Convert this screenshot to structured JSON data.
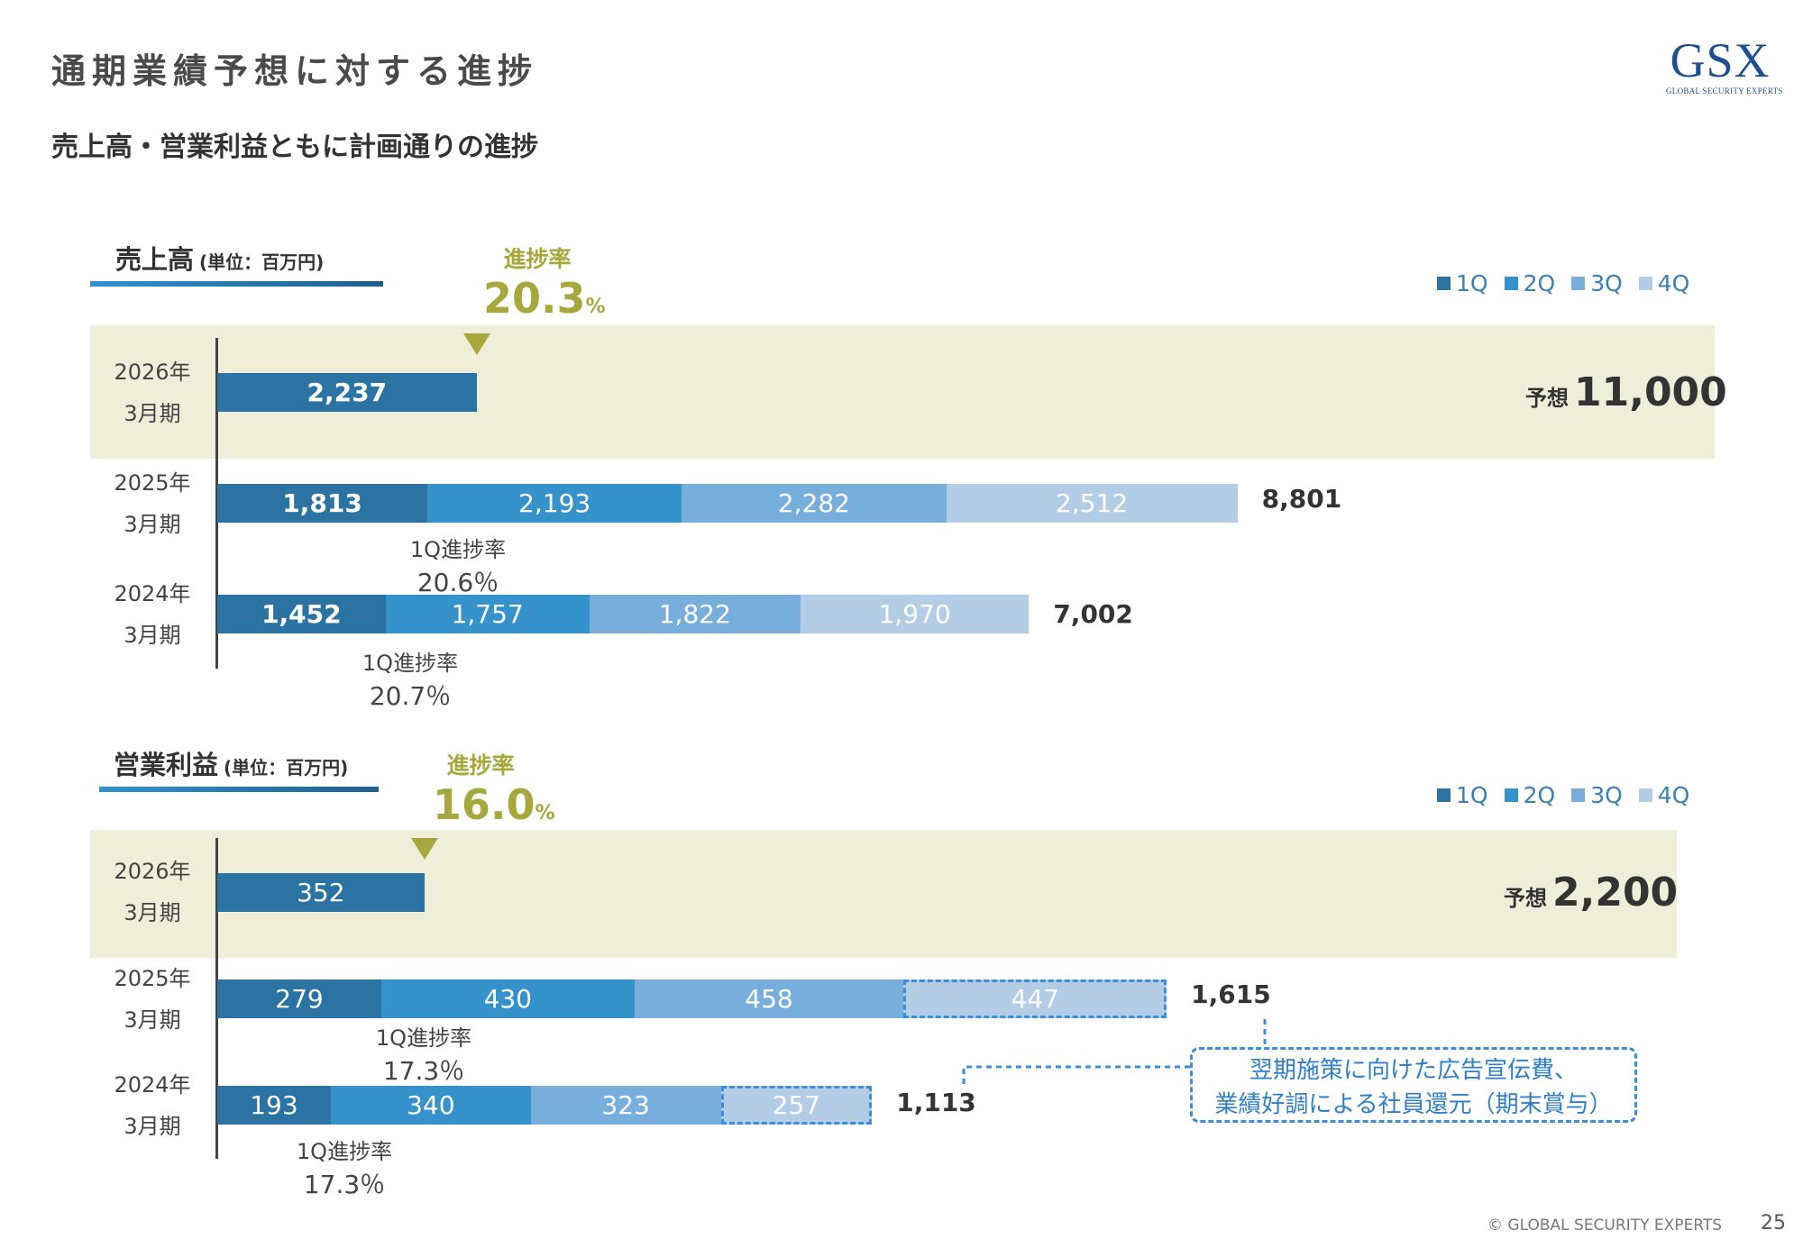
{
  "page": {
    "title": "通期業績予想に対する進捗",
    "subtitle": "売上高・営業利益ともに計画通りの進捗",
    "logo_mark": "GSX",
    "logo_tagline": "GLOBAL SECURITY EXPERTS",
    "footer": "© GLOBAL SECURITY EXPERTS",
    "page_number": "25"
  },
  "colors": {
    "q1": "#2b73a3",
    "q2": "#3592cb",
    "q3": "#78aedb",
    "q4": "#b3cde6",
    "band": "#efefd9",
    "accent": "#a6a83c"
  },
  "chart_data": [
    {
      "type": "bar",
      "orientation": "horizontal",
      "stacked": true,
      "title": "売上高",
      "unit": "(単位：百万円)",
      "legend": [
        "1Q",
        "2Q",
        "3Q",
        "4Q"
      ],
      "legend_placement": "top-right",
      "progress_label": "進捗率",
      "progress_value": "20.3",
      "progress_unit": "%",
      "categories": [
        {
          "year": "2026年",
          "period": "3月期",
          "values": [
            "2,237"
          ],
          "nums": [
            2237
          ],
          "forecast_label": "予想",
          "forecast": "11,000",
          "highlight": true
        },
        {
          "year": "2025年",
          "period": "3月期",
          "values": [
            "1,813",
            "2,193",
            "2,282",
            "2,512"
          ],
          "nums": [
            1813,
            2193,
            2282,
            2512
          ],
          "total": "8,801",
          "q1_label": "1Q進捗率",
          "q1_rate": "20.6％"
        },
        {
          "year": "2024年",
          "period": "3月期",
          "values": [
            "1,452",
            "1,757",
            "1,822",
            "1,970"
          ],
          "nums": [
            1452,
            1757,
            1822,
            1970
          ],
          "total": "7,002",
          "q1_label": "1Q進捗率",
          "q1_rate": "20.7％"
        }
      ]
    },
    {
      "type": "bar",
      "orientation": "horizontal",
      "stacked": true,
      "title": "営業利益",
      "unit": "(単位：百万円)",
      "legend": [
        "1Q",
        "2Q",
        "3Q",
        "4Q"
      ],
      "legend_placement": "top-right",
      "progress_label": "進捗率",
      "progress_value": "16.0",
      "progress_unit": "%",
      "categories": [
        {
          "year": "2026年",
          "period": "3月期",
          "values": [
            "352"
          ],
          "nums": [
            352
          ],
          "forecast_label": "予想",
          "forecast": "2,200",
          "highlight": true
        },
        {
          "year": "2025年",
          "period": "3月期",
          "values": [
            "279",
            "430",
            "458",
            "447"
          ],
          "nums": [
            279,
            430,
            458,
            447
          ],
          "total": "1,615",
          "q1_label": "1Q進捗率",
          "q1_rate": "17.3％"
        },
        {
          "year": "2024年",
          "period": "3月期",
          "values": [
            "193",
            "340",
            "323",
            "257"
          ],
          "nums": [
            193,
            340,
            323,
            257
          ],
          "total": "1,113",
          "q1_label": "1Q進捗率",
          "q1_rate": "17.3％"
        }
      ],
      "annotation": {
        "line1": "翌期施策に向けた広告宣伝費、",
        "line2": "業績好調による社員還元（期末賞与）"
      }
    }
  ]
}
